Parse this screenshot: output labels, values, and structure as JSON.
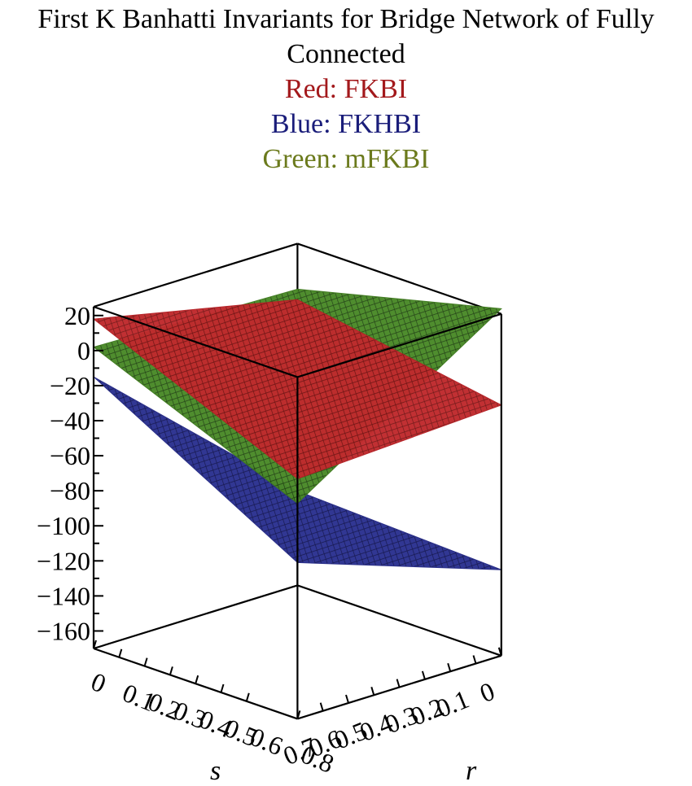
{
  "chart_data": {
    "type": "surface3d",
    "title": "First K Banhatti Invariants for Bridge Network of Fully Connected",
    "legend": [
      {
        "label": "Red: FKBI",
        "color": "#a3191c"
      },
      {
        "label": "Blue: FKHBI",
        "color": "#1a1d7a"
      },
      {
        "label": "Green: mFKBI",
        "color": "#6b7a1c"
      }
    ],
    "axes": {
      "z": {
        "range": [
          -170,
          25
        ],
        "ticks": [
          "20",
          "0",
          "−20",
          "−40",
          "−60",
          "−80",
          "−100",
          "−120",
          "−140",
          "−160"
        ],
        "tick_values": [
          20,
          0,
          -20,
          -40,
          -60,
          -80,
          -100,
          -120,
          -140,
          -160
        ]
      },
      "s": {
        "label": "s",
        "range": [
          0,
          0.8
        ],
        "ticks": [
          "0",
          "0.1",
          "0.2",
          "0.3",
          "0.4",
          "0.5",
          "0.6",
          "0.8"
        ],
        "tick_values": [
          0,
          0.1,
          0.2,
          0.3,
          0.4,
          0.5,
          0.6,
          0.8
        ]
      },
      "r": {
        "label": "r",
        "range": [
          0,
          0.8
        ],
        "ticks": [
          "0",
          "0.1",
          "0.2",
          "0.3",
          "0.4",
          "0.5",
          "0.6",
          "0.7"
        ],
        "tick_values": [
          0,
          0.1,
          0.2,
          0.3,
          0.4,
          0.5,
          0.6,
          0.7
        ]
      }
    },
    "series": [
      {
        "name": "FKBI",
        "color": "#b52025",
        "corners": {
          "s0_r0": 18,
          "s08_r0": -33,
          "s08_r08": -27,
          "s0_r08": -7
        }
      },
      {
        "name": "mFKBI",
        "color": "#3f7a1e",
        "corners": {
          "s0_r0": 2,
          "s08_r0": -47,
          "s08_r08": 28,
          "s0_r08": -1
        }
      },
      {
        "name": "FKHBI",
        "color": "#252a86",
        "corners": {
          "s0_r0": -15,
          "s08_r0": -40,
          "s08_r08": -121,
          "s0_r08": -157
        }
      }
    ],
    "grid": false
  }
}
